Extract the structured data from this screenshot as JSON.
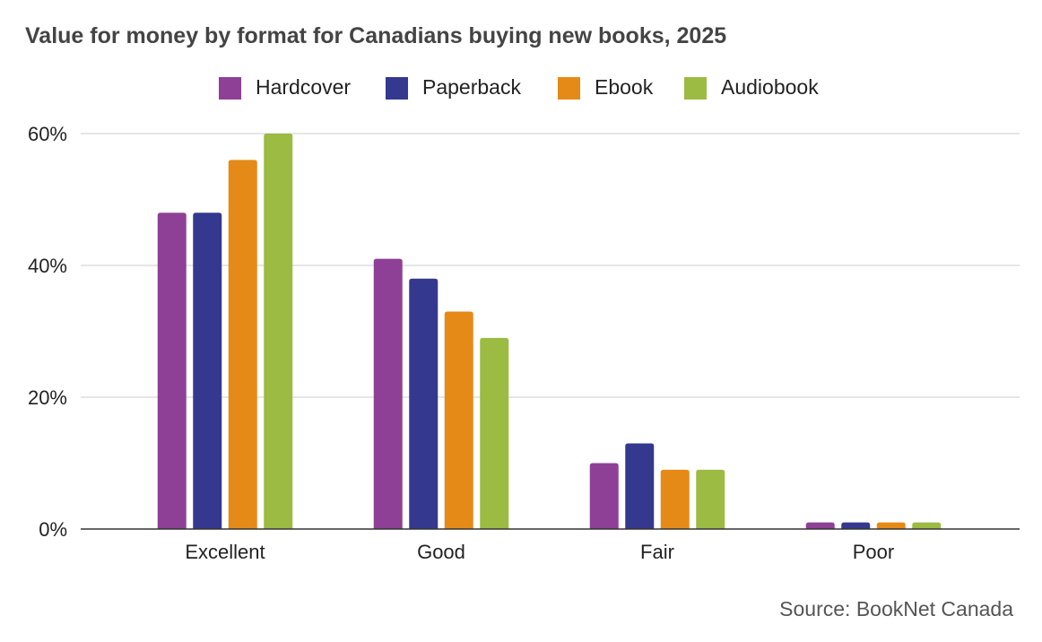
{
  "chart_data": {
    "type": "bar",
    "title": "Value for money by format for Canadians buying new books, 2025",
    "categories": [
      "Excellent",
      "Good",
      "Fair",
      "Poor"
    ],
    "series": [
      {
        "name": "Hardcover",
        "color": "#8e4097",
        "values": [
          48,
          41,
          10,
          1
        ]
      },
      {
        "name": "Paperback",
        "color": "#35388f",
        "values": [
          48,
          38,
          13,
          1
        ]
      },
      {
        "name": "Ebook",
        "color": "#e68a17",
        "values": [
          56,
          33,
          9,
          1
        ]
      },
      {
        "name": "Audiobook",
        "color": "#9cbb42",
        "values": [
          60,
          29,
          9,
          1
        ]
      }
    ],
    "yticks": [
      0,
      20,
      40,
      60
    ],
    "ytick_labels": [
      "0%",
      "20%",
      "40%",
      "60%"
    ],
    "ylim": [
      0,
      60
    ],
    "xlabel": "",
    "ylabel": "",
    "grid": true,
    "legend_position": "top-center",
    "source": "Source: BookNet Canada"
  }
}
